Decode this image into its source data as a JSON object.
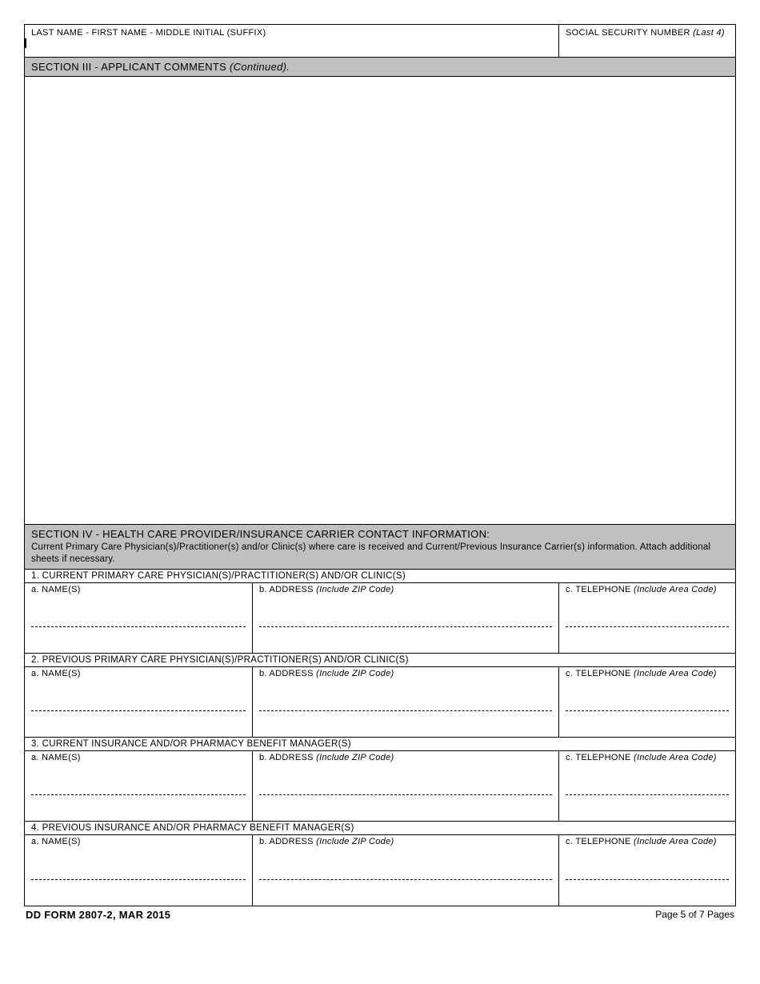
{
  "header": {
    "name_label": "LAST NAME - FIRST NAME - MIDDLE INITIAL (SUFFIX)",
    "ssn_label": "SOCIAL SECURITY NUMBER",
    "ssn_suffix": "(Last 4)"
  },
  "section3": {
    "title": "SECTION III - APPLICANT COMMENTS",
    "continued": "(Continued)."
  },
  "section4": {
    "title": "SECTION IV - HEALTH CARE PROVIDER/INSURANCE CARRIER CONTACT INFORMATION:",
    "subtext": "Current Primary Care Physician(s)/Practitioner(s) and/or Clinic(s) where care is received and Current/Previous Insurance Carrier(s) information. Attach additional sheets if necessary.",
    "rows": [
      {
        "header": "1.  CURRENT PRIMARY CARE PHYSICIAN(S)/PRACTITIONER(S) AND/OR CLINIC(S)",
        "name": "a.  NAME(S)",
        "address": "b.  ADDRESS",
        "address_suffix": "(Include ZIP Code)",
        "phone": "c.  TELEPHONE",
        "phone_suffix": "(Include Area Code)"
      },
      {
        "header": "2.  PREVIOUS PRIMARY CARE PHYSICIAN(S)/PRACTITIONER(S) AND/OR CLINIC(S)",
        "name": "a.  NAME(S)",
        "address": "b.  ADDRESS",
        "address_suffix": "(Include ZIP Code)",
        "phone": "c.  TELEPHONE",
        "phone_suffix": "(Include Area Code)"
      },
      {
        "header": "3.  CURRENT INSURANCE AND/OR PHARMACY BENEFIT MANAGER(S)",
        "name": "a.  NAME(S)",
        "address": "b.  ADDRESS",
        "address_suffix": "(Include ZIP Code)",
        "phone": "c.  TELEPHONE",
        "phone_suffix": "(Include Area Code)"
      },
      {
        "header": "4.  PREVIOUS INSURANCE AND/OR PHARMACY BENEFIT MANAGER(S)",
        "name": "a.  NAME(S)",
        "address": "b.  ADDRESS",
        "address_suffix": "(Include ZIP Code)",
        "phone": "c.  TELEPHONE",
        "phone_suffix": "(Include Area Code)"
      }
    ]
  },
  "footer": {
    "form_id": "DD FORM 2807-2, MAR 2015",
    "page": "Page 5 of 7 Pages"
  }
}
